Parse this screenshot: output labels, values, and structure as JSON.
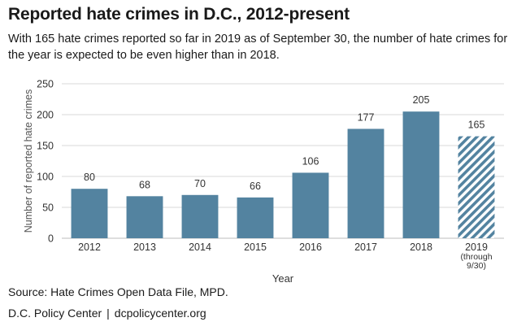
{
  "header": {
    "title": "Reported hate crimes in D.C., 2012-present",
    "subtitle": "With 165 hate crimes reported so far in 2019 as of September 30, the number of hate crimes for the year is expected to be even higher than in 2018."
  },
  "footer": {
    "source": "Source: Hate Crimes Open Data File, MPD.",
    "org": "D.C. Policy Center",
    "separator": "|",
    "site": "dcpolicycenter.org"
  },
  "colors": {
    "bar": "#5383a0",
    "grid": "#d9d9d9",
    "text": "#333333"
  },
  "chart_data": {
    "type": "bar",
    "xlabel": "Year",
    "ylabel": "Number of reported hate crimes",
    "ylim": [
      0,
      250
    ],
    "yticks": [
      0,
      50,
      100,
      150,
      200,
      250
    ],
    "grid": true,
    "categories": [
      [
        "2012"
      ],
      [
        "2013"
      ],
      [
        "2014"
      ],
      [
        "2015"
      ],
      [
        "2016"
      ],
      [
        "2017"
      ],
      [
        "2018"
      ],
      [
        "2019",
        "(through",
        "9/30)"
      ]
    ],
    "values": [
      80,
      68,
      70,
      66,
      106,
      177,
      205,
      165
    ],
    "partial_year_hatched": [
      false,
      false,
      false,
      false,
      false,
      false,
      false,
      true
    ]
  }
}
